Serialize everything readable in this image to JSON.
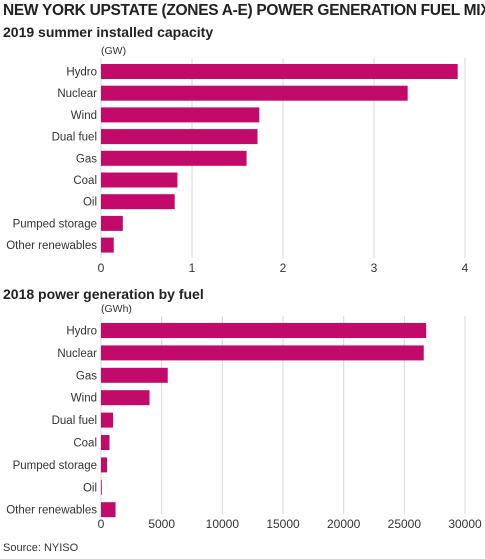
{
  "title": "NEW YORK UPSTATE (ZONES A-E) POWER GENERATION FUEL MIX",
  "source": "Source: NYISO",
  "colors": {
    "bar": "#c20a6a",
    "grid": "#d7d7d7",
    "text": "#333333"
  },
  "chart_data": [
    {
      "type": "bar",
      "orientation": "horizontal",
      "title": "2019 summer installed capacity",
      "unit": "(GW)",
      "categories": [
        "Hydro",
        "Nuclear",
        "Wind",
        "Dual fuel",
        "Gas",
        "Coal",
        "Oil",
        "Pumped storage",
        "Other renewables"
      ],
      "values": [
        3.92,
        3.37,
        1.74,
        1.72,
        1.6,
        0.84,
        0.81,
        0.24,
        0.14
      ],
      "xlim": [
        0,
        4
      ],
      "xticks": [
        0,
        1,
        2,
        3,
        4
      ],
      "grid": true
    },
    {
      "type": "bar",
      "orientation": "horizontal",
      "title": "2018 power generation by fuel",
      "unit": "(GWh)",
      "categories": [
        "Hydro",
        "Nuclear",
        "Gas",
        "Wind",
        "Dual fuel",
        "Coal",
        "Pumped storage",
        "Oil",
        "Other renewables"
      ],
      "values": [
        26800,
        26600,
        5500,
        4000,
        1000,
        700,
        500,
        60,
        1200
      ],
      "xlim": [
        0,
        30000
      ],
      "xticks": [
        0,
        5000,
        10000,
        15000,
        20000,
        25000,
        30000
      ],
      "grid": true
    }
  ]
}
